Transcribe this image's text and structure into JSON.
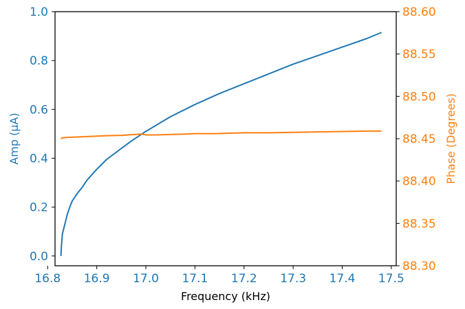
{
  "chart_data": {
    "type": "line",
    "xlabel": "Frequency (kHz)",
    "ylabel_left": "Amp (μA)",
    "ylabel_right": "Phase (Degrees)",
    "xlim": [
      16.815,
      17.51
    ],
    "ylim_left": [
      -0.04,
      1.0
    ],
    "ylim_right": [
      88.3,
      88.6
    ],
    "x_ticks": [
      16.8,
      16.9,
      17.0,
      17.1,
      17.2,
      17.3,
      17.4,
      17.5
    ],
    "x_tick_labels": [
      "16.8",
      "16.9",
      "17.0",
      "17.1",
      "17.2",
      "17.3",
      "17.4",
      "17.5"
    ],
    "y_left_ticks": [
      0.0,
      0.2,
      0.4,
      0.6,
      0.8,
      1.0
    ],
    "y_left_tick_labels": [
      "0.0",
      "0.2",
      "0.4",
      "0.6",
      "0.8",
      "1.0"
    ],
    "y_right_ticks": [
      88.3,
      88.35,
      88.4,
      88.45,
      88.5,
      88.55,
      88.6
    ],
    "y_right_tick_labels": [
      "88.30",
      "88.35",
      "88.40",
      "88.45",
      "88.50",
      "88.55",
      "88.60"
    ],
    "grid": false,
    "colors": {
      "amp": "#1f77b4",
      "phase": "#ff7f0e",
      "axis": "#000000"
    },
    "series": [
      {
        "axis": "left",
        "x": [
          16.827,
          16.828,
          16.83,
          16.835,
          16.84,
          16.845,
          16.85,
          16.86,
          16.87,
          16.88,
          16.9,
          16.92,
          16.95,
          16.97,
          17.0,
          17.05,
          17.1,
          17.15,
          17.2,
          17.25,
          17.3,
          17.35,
          17.4,
          17.45,
          17.48
        ],
        "values": [
          0.0,
          0.04,
          0.09,
          0.13,
          0.17,
          0.2,
          0.225,
          0.255,
          0.28,
          0.31,
          0.355,
          0.395,
          0.44,
          0.47,
          0.51,
          0.57,
          0.62,
          0.665,
          0.705,
          0.745,
          0.785,
          0.82,
          0.855,
          0.89,
          0.915
        ]
      },
      {
        "axis": "right",
        "x": [
          16.827,
          16.83,
          16.84,
          16.86,
          16.88,
          16.9,
          16.92,
          16.95,
          16.99,
          17.0,
          17.02,
          17.05,
          17.08,
          17.1,
          17.12,
          17.14,
          17.17,
          17.2,
          17.25,
          17.3,
          17.35,
          17.4,
          17.45,
          17.48
        ],
        "values": [
          88.45,
          88.451,
          88.4515,
          88.452,
          88.4525,
          88.453,
          88.4535,
          88.454,
          88.4555,
          88.4545,
          88.4545,
          88.455,
          88.4555,
          88.456,
          88.456,
          88.456,
          88.4565,
          88.457,
          88.457,
          88.4575,
          88.458,
          88.4585,
          88.459,
          88.459
        ]
      }
    ]
  }
}
